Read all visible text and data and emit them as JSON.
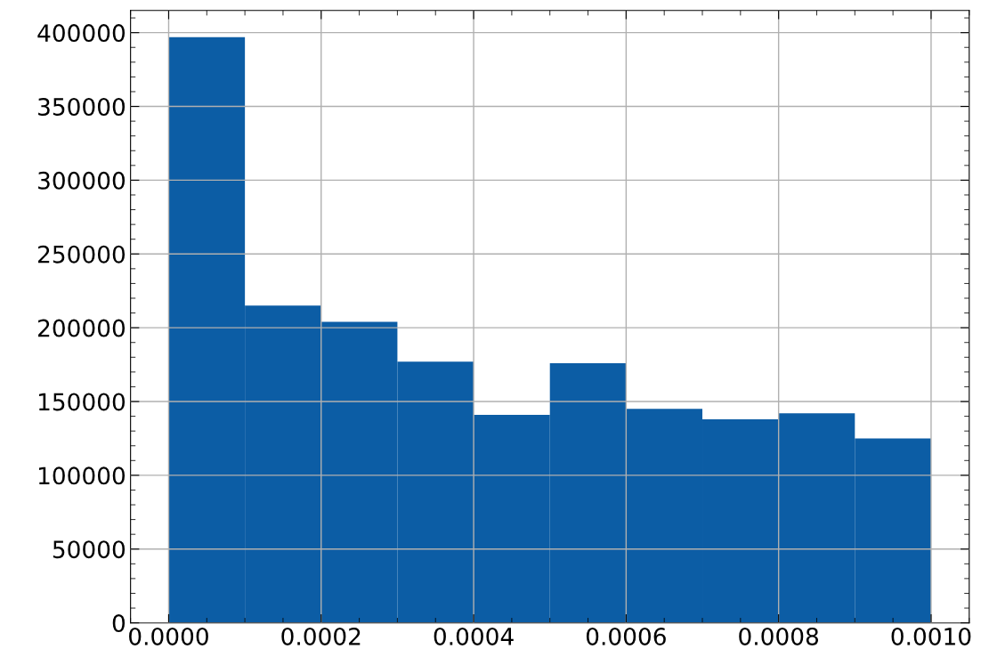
{
  "chart_data": {
    "type": "histogram",
    "bins": [
      0.0,
      0.0001,
      0.0002,
      0.0003,
      0.0004,
      0.0005,
      0.0006,
      0.0007,
      0.0008,
      0.0009,
      0.001
    ],
    "values": [
      397000,
      215000,
      204000,
      177000,
      141000,
      176000,
      145000,
      138000,
      142000,
      125000
    ],
    "color": "#0c5da5",
    "xlim": [
      -5e-05,
      0.00105
    ],
    "xticks": [
      {
        "value": 0.0,
        "label": "0.0000"
      },
      {
        "value": 0.0002,
        "label": "0.0002"
      },
      {
        "value": 0.0004,
        "label": "0.0004"
      },
      {
        "value": 0.0006,
        "label": "0.0006"
      },
      {
        "value": 0.0008,
        "label": "0.0008"
      },
      {
        "value": 0.001,
        "label": "0.0010"
      }
    ],
    "ylim": [
      0,
      415000
    ],
    "yticks": [
      0,
      50000,
      100000,
      150000,
      200000,
      250000,
      300000,
      350000,
      400000
    ],
    "grid": true
  }
}
